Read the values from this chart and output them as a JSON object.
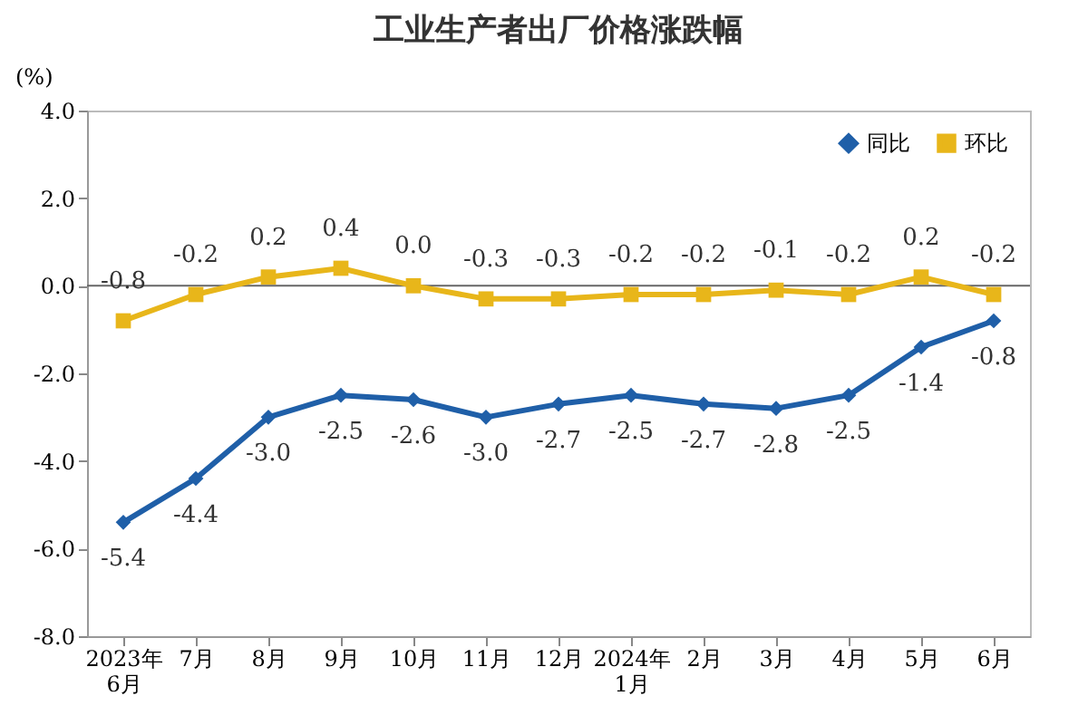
{
  "chart_data": {
    "type": "line",
    "title": "工业生产者出厂价格涨跌幅",
    "ylabel": "(%)",
    "categories": [
      "2023年\n6月",
      "7月",
      "8月",
      "9月",
      "10月",
      "11月",
      "12月",
      "2024年\n1月",
      "2月",
      "3月",
      "4月",
      "5月",
      "6月"
    ],
    "series": [
      {
        "name": "同比",
        "color": "#1f5fa8",
        "marker": "diamond",
        "values": [
          -5.4,
          -4.4,
          -3.0,
          -2.5,
          -2.6,
          -3.0,
          -2.7,
          -2.5,
          -2.7,
          -2.8,
          -2.5,
          -1.4,
          -0.8
        ],
        "value_labels": [
          "-5.4",
          "-4.4",
          "-3.0",
          "-2.5",
          "-2.6",
          "-3.0",
          "-2.7",
          "-2.5",
          "-2.7",
          "-2.8",
          "-2.5",
          "-1.4",
          "-0.8"
        ]
      },
      {
        "name": "环比",
        "color": "#e8b61a",
        "marker": "square",
        "values": [
          -0.8,
          -0.2,
          0.2,
          0.4,
          0.0,
          -0.3,
          -0.3,
          -0.2,
          -0.2,
          -0.1,
          -0.2,
          0.2,
          -0.2
        ],
        "value_labels": [
          "-0.8",
          "-0.2",
          "0.2",
          "0.4",
          "0.0",
          "-0.3",
          "-0.3",
          "-0.2",
          "-0.2",
          "-0.1",
          "-0.2",
          "0.2",
          "-0.2"
        ]
      }
    ],
    "ylim": [
      -8,
      4
    ],
    "yticks": [
      {
        "value": 4,
        "label": "4.0"
      },
      {
        "value": 2,
        "label": "2.0"
      },
      {
        "value": 0,
        "label": "0.0"
      },
      {
        "value": -2,
        "label": "-2.0"
      },
      {
        "value": -4,
        "label": "-4.0"
      },
      {
        "value": -6,
        "label": "-6.0"
      },
      {
        "value": -8,
        "label": "-8.0"
      }
    ],
    "ref_lines": [
      {
        "axis": "y",
        "value": 0,
        "color": "#666666"
      }
    ],
    "legend": "top right",
    "grid": false
  }
}
